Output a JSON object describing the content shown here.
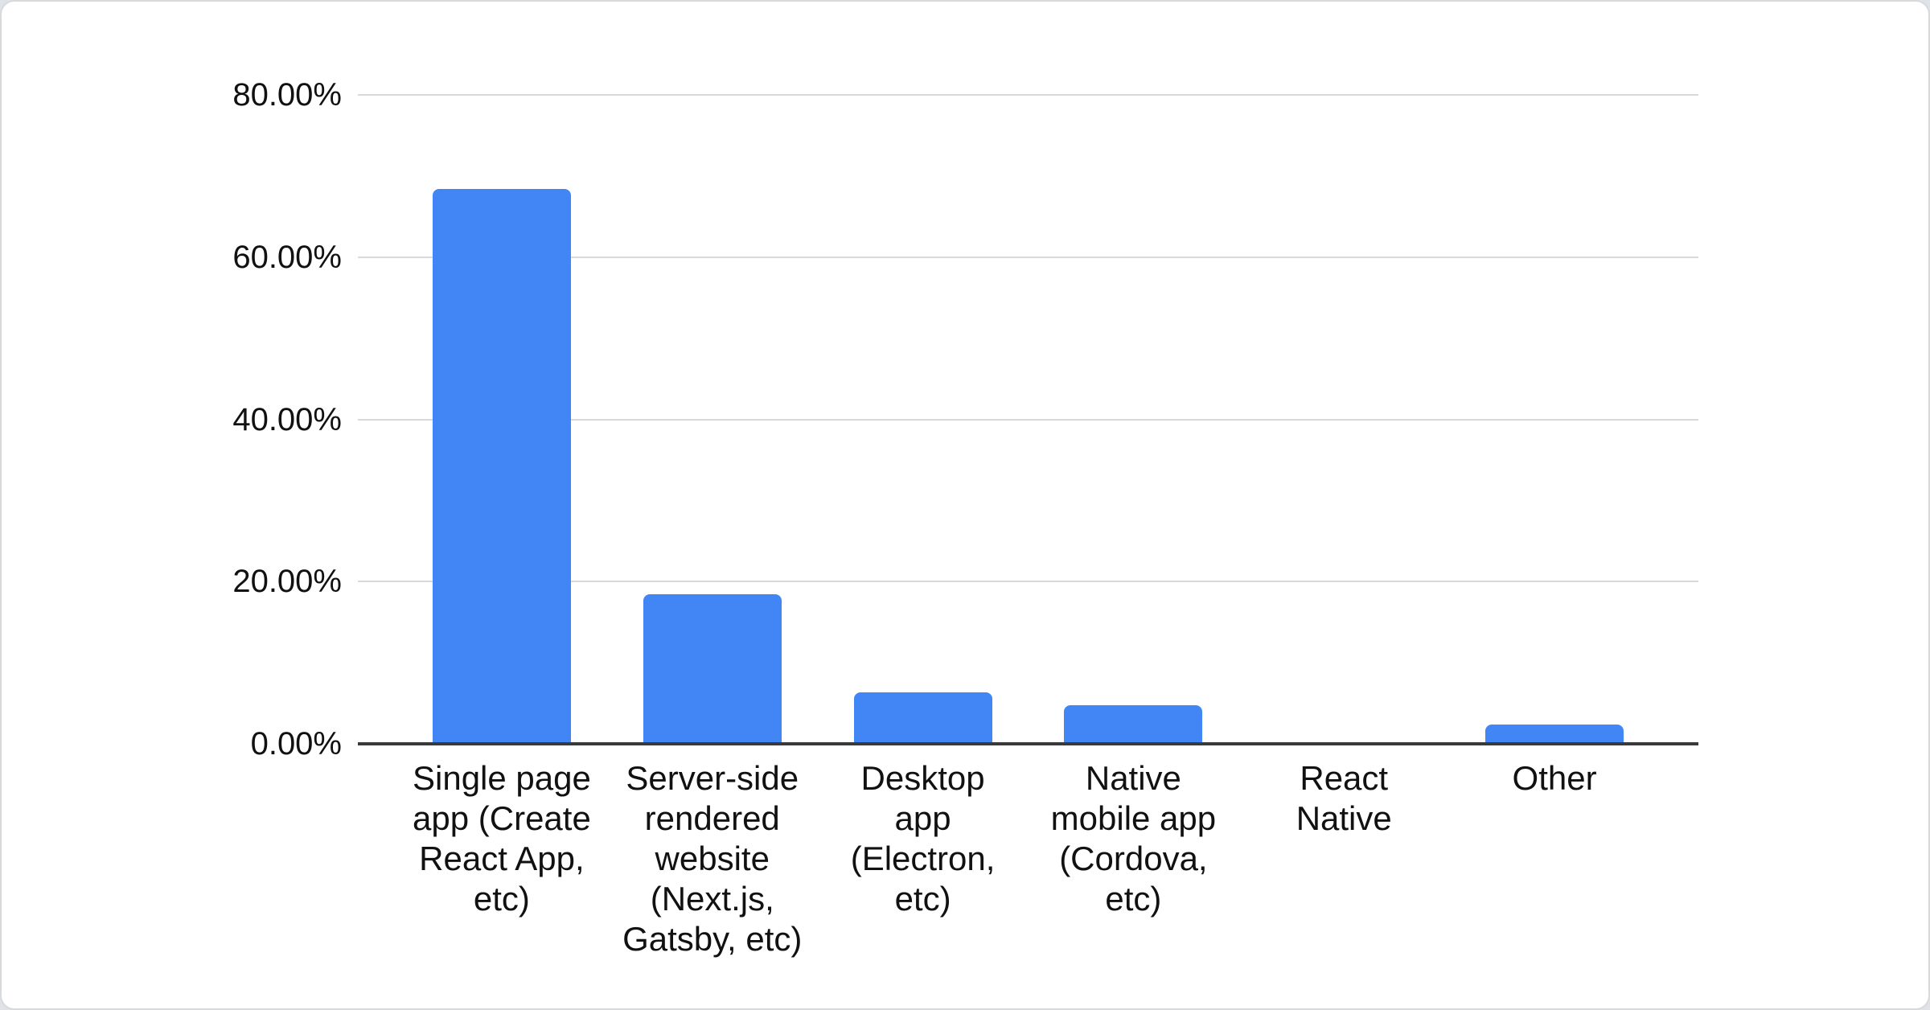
{
  "page": {
    "page_background": "#dfe2e6",
    "card_background": "#ffffff",
    "card_border": "#d7dadd"
  },
  "chart_data": {
    "type": "bar",
    "title": "",
    "xlabel": "",
    "ylabel": "",
    "legend": "none",
    "grid": true,
    "categories": [
      "Single page app (Create React App, etc)",
      "Server-side rendered website (Next.js, Gatsby, etc)",
      "Desktop app (Electron, etc)",
      "Native mobile app (Cordova, etc)",
      "React Native",
      "Other"
    ],
    "categories_display": [
      "Single page\napp (Create\nReact App,\netc)",
      "Server-side\nrendered\nwebsite\n(Next.js,\nGatsby, etc)",
      "Desktop\napp\n(Electron,\netc)",
      "Native\nmobile app\n(Cordova,\netc)",
      "React\nNative",
      "Other"
    ],
    "values": [
      68.4,
      18.4,
      6.3,
      4.8,
      0.1,
      2.4
    ],
    "unit": "%",
    "ylim": [
      0,
      80
    ],
    "y_ticks": [
      {
        "value": 80,
        "label": "80.00%"
      },
      {
        "value": 60,
        "label": "60.00%"
      },
      {
        "value": 40,
        "label": "40.00%"
      },
      {
        "value": 20,
        "label": "20.00%"
      },
      {
        "value": 0,
        "label": "0.00%"
      }
    ],
    "bar_color": "#4285f4",
    "gridline_color": "#d9d9d9",
    "axis_line_color": "#3a3a3a",
    "label_color": "#111111"
  }
}
